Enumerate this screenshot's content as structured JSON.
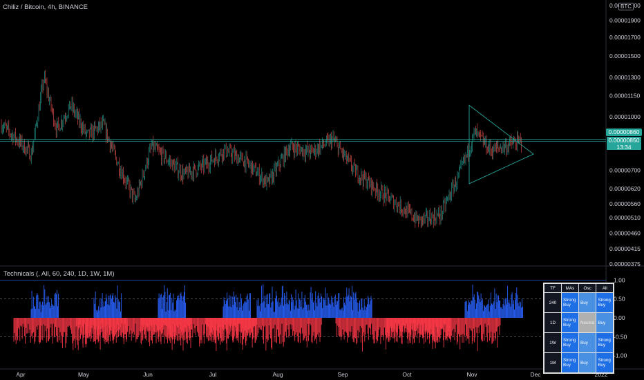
{
  "symbol": "Chiliz / Bitcoin, 4h, BINANCE",
  "quote_badge": "BTC",
  "indicator_title": "Technicals (, All, 60, 240, 1D, 1W, 1M)",
  "price_tags": {
    "upper": "0.00000860",
    "current": "0.00000850",
    "countdown": "13:34"
  },
  "colors": {
    "up": "#26a69a",
    "down": "#ef5350",
    "hist_up": "#2962ff",
    "hist_down": "#f23645",
    "triangle": "#26a69a"
  },
  "chart_data": [
    {
      "type": "candlestick",
      "title": "Chiliz / Bitcoin, 4h, BINANCE",
      "y_scale": "log",
      "ylim": [
        3.75e-06,
        2.1e-05
      ],
      "y_ticks": [
        "0.00002100",
        "0.00001900",
        "0.00001700",
        "0.00001500",
        "0.00001300",
        "0.00001150",
        "0.00001000",
        "0.00000860",
        "0.00000850",
        "0.00000700",
        "0.00000620",
        "0.00000560",
        "0.00000510",
        "0.00000460",
        "0.00000415",
        "0.00000375"
      ],
      "x_ticks": [
        "Apr",
        "May",
        "Jun",
        "Jul",
        "Aug",
        "Sep",
        "Oct",
        "Nov",
        "Dec",
        "2022"
      ],
      "close_path": [
        [
          "Apr",
          9.5e-06
        ],
        [
          "Apr",
          8.5e-06
        ],
        [
          "Apr",
          7.8e-06
        ],
        [
          "Apr",
          1.3e-05
        ],
        [
          "Apr",
          9.2e-06
        ],
        [
          "May",
          1.08e-05
        ],
        [
          "May",
          8.8e-06
        ],
        [
          "May",
          9.5e-06
        ],
        [
          "May",
          7.2e-06
        ],
        [
          "Jun",
          5.7e-06
        ],
        [
          "Jun",
          8.2e-06
        ],
        [
          "Jun",
          7.5e-06
        ],
        [
          "Jun",
          6.8e-06
        ],
        [
          "Jul",
          7.2e-06
        ],
        [
          "Jul",
          8e-06
        ],
        [
          "Jul",
          7.4e-06
        ],
        [
          "Aug",
          6.4e-06
        ],
        [
          "Aug",
          8.2e-06
        ],
        [
          "Aug",
          7.9e-06
        ],
        [
          "Sep",
          8.6e-06
        ],
        [
          "Sep",
          7e-06
        ],
        [
          "Sep",
          6.2e-06
        ],
        [
          "Oct",
          5.6e-06
        ],
        [
          "Oct",
          5e-06
        ],
        [
          "Oct",
          5.2e-06
        ],
        [
          "Nov",
          6.8e-06
        ],
        [
          "Nov",
          9e-06
        ],
        [
          "Nov",
          8e-06
        ],
        [
          "Nov",
          8.5e-06
        ]
      ],
      "levels": [
        8.6e-06,
        8.5e-06
      ],
      "triangle": {
        "top": 1.08e-05,
        "apex": 7.8e-06,
        "bottom": 6.4e-06,
        "x_start": "Nov"
      }
    },
    {
      "type": "bar",
      "title": "Technicals (, All, 60, 240, 1D, 1W, 1M)",
      "ylim": [
        -1.1,
        1.1
      ],
      "y_ticks": [
        "1.00",
        "0.50",
        "0.00",
        "-0.50",
        "-1.00"
      ],
      "reference_lines": [
        0.5,
        -0.5
      ],
      "segments": [
        {
          "from": "Apr",
          "to": "Apr",
          "sign": 1
        },
        {
          "from": "Apr",
          "to": "May",
          "sign": -1
        },
        {
          "from": "May",
          "to": "May",
          "sign": 1
        },
        {
          "from": "May",
          "to": "Jun",
          "sign": -1
        },
        {
          "from": "Jun",
          "to": "Jun",
          "sign": 1
        },
        {
          "from": "Jun",
          "to": "Jul",
          "sign": -1
        },
        {
          "from": "Jul",
          "to": "Jul",
          "sign": 1
        },
        {
          "from": "Jul",
          "to": "Aug",
          "sign": -1
        },
        {
          "from": "Aug",
          "to": "Sep",
          "sign": 1
        },
        {
          "from": "Sep",
          "to": "Oct",
          "sign": -1
        },
        {
          "from": "Oct",
          "to": "Nov",
          "sign": -1
        },
        {
          "from": "Nov",
          "to": "Dec",
          "sign": 1
        }
      ]
    }
  ],
  "tech_table": {
    "headers": [
      "TF",
      "MAs",
      "Osc",
      "All"
    ],
    "rows": [
      {
        "tf": "240",
        "mas": "Strong Buy",
        "osc": "Buy",
        "all": "Strong Buy"
      },
      {
        "tf": "1D",
        "mas": "Strong Buy",
        "osc": "Neutral",
        "all": "Buy"
      },
      {
        "tf": "1W",
        "mas": "Strong Buy",
        "osc": "Buy",
        "all": "Strong Buy"
      },
      {
        "tf": "1M",
        "mas": "Strong Buy",
        "osc": "Buy",
        "all": "Strong Buy"
      }
    ]
  }
}
